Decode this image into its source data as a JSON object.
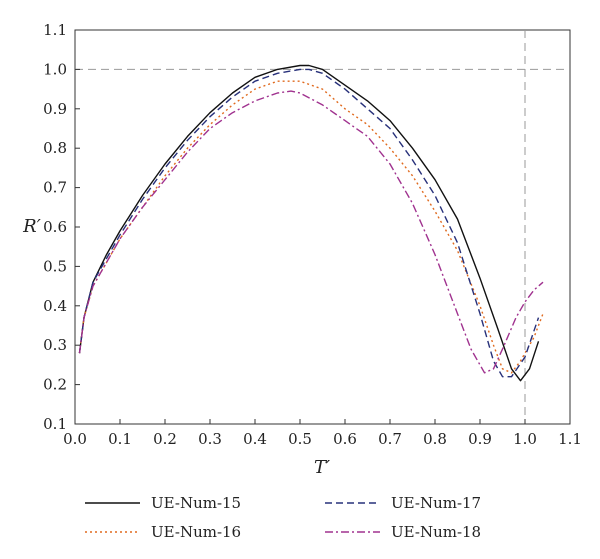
{
  "chart_data": {
    "type": "line",
    "title": "",
    "xlabel": "T′",
    "ylabel": "R′",
    "xlim": [
      0.0,
      1.1
    ],
    "ylim": [
      0.1,
      1.1
    ],
    "xticks": [
      "0.0",
      "0.1",
      "0.2",
      "0.3",
      "0.4",
      "0.5",
      "0.6",
      "0.7",
      "0.8",
      "0.9",
      "1.0",
      "1.1"
    ],
    "yticks": [
      "0.1",
      "0.2",
      "0.3",
      "0.4",
      "0.5",
      "0.6",
      "0.7",
      "0.8",
      "0.9",
      "1.0",
      "1.1"
    ],
    "grid": false,
    "legend": "bottom",
    "reference_lines": [
      {
        "orientation": "horizontal",
        "value": 1.0,
        "style": "dashed",
        "color": "#999999"
      },
      {
        "orientation": "vertical",
        "value": 1.0,
        "style": "dashed",
        "color": "#999999"
      }
    ],
    "series": [
      {
        "name": "UE-Num-15",
        "color": "#111111",
        "dash": "solid",
        "x": [
          0.01,
          0.02,
          0.04,
          0.07,
          0.1,
          0.15,
          0.2,
          0.25,
          0.3,
          0.35,
          0.4,
          0.45,
          0.5,
          0.52,
          0.55,
          0.6,
          0.65,
          0.7,
          0.75,
          0.8,
          0.85,
          0.9,
          0.94,
          0.97,
          0.99,
          1.01,
          1.03
        ],
        "y": [
          0.28,
          0.37,
          0.46,
          0.53,
          0.59,
          0.68,
          0.76,
          0.83,
          0.89,
          0.94,
          0.98,
          1.0,
          1.01,
          1.01,
          1.0,
          0.96,
          0.92,
          0.87,
          0.8,
          0.72,
          0.62,
          0.47,
          0.34,
          0.24,
          0.21,
          0.24,
          0.31
        ]
      },
      {
        "name": "UE-Num-16",
        "color": "#e06a1e",
        "dash": "dotted",
        "x": [
          0.01,
          0.02,
          0.04,
          0.07,
          0.1,
          0.15,
          0.2,
          0.25,
          0.3,
          0.35,
          0.4,
          0.45,
          0.5,
          0.55,
          0.6,
          0.65,
          0.7,
          0.75,
          0.8,
          0.85,
          0.9,
          0.93,
          0.95,
          0.97,
          0.99,
          1.02,
          1.04
        ],
        "y": [
          0.28,
          0.37,
          0.45,
          0.51,
          0.57,
          0.65,
          0.73,
          0.8,
          0.86,
          0.91,
          0.95,
          0.97,
          0.97,
          0.95,
          0.9,
          0.86,
          0.8,
          0.73,
          0.64,
          0.54,
          0.4,
          0.3,
          0.24,
          0.23,
          0.26,
          0.32,
          0.38
        ]
      },
      {
        "name": "UE-Num-17",
        "color": "#27307a",
        "dash": "dashed",
        "x": [
          0.01,
          0.02,
          0.04,
          0.07,
          0.1,
          0.15,
          0.2,
          0.25,
          0.3,
          0.35,
          0.4,
          0.45,
          0.5,
          0.52,
          0.55,
          0.6,
          0.65,
          0.7,
          0.75,
          0.8,
          0.85,
          0.9,
          0.93,
          0.95,
          0.97,
          1.0,
          1.03
        ],
        "y": [
          0.28,
          0.37,
          0.46,
          0.52,
          0.58,
          0.67,
          0.75,
          0.82,
          0.88,
          0.93,
          0.97,
          0.99,
          1.0,
          1.0,
          0.99,
          0.95,
          0.9,
          0.85,
          0.77,
          0.68,
          0.56,
          0.38,
          0.26,
          0.22,
          0.22,
          0.27,
          0.37
        ]
      },
      {
        "name": "UE-Num-18",
        "color": "#a0328f",
        "dash": "dashdot",
        "x": [
          0.01,
          0.02,
          0.04,
          0.07,
          0.1,
          0.15,
          0.2,
          0.25,
          0.3,
          0.35,
          0.4,
          0.45,
          0.48,
          0.5,
          0.55,
          0.6,
          0.65,
          0.7,
          0.75,
          0.8,
          0.85,
          0.88,
          0.91,
          0.93,
          0.95,
          0.98,
          1.0,
          1.02,
          1.04
        ],
        "y": [
          0.28,
          0.37,
          0.45,
          0.51,
          0.57,
          0.65,
          0.72,
          0.79,
          0.85,
          0.89,
          0.92,
          0.94,
          0.945,
          0.94,
          0.91,
          0.87,
          0.83,
          0.76,
          0.66,
          0.53,
          0.38,
          0.29,
          0.23,
          0.24,
          0.29,
          0.37,
          0.41,
          0.44,
          0.46
        ]
      }
    ]
  }
}
